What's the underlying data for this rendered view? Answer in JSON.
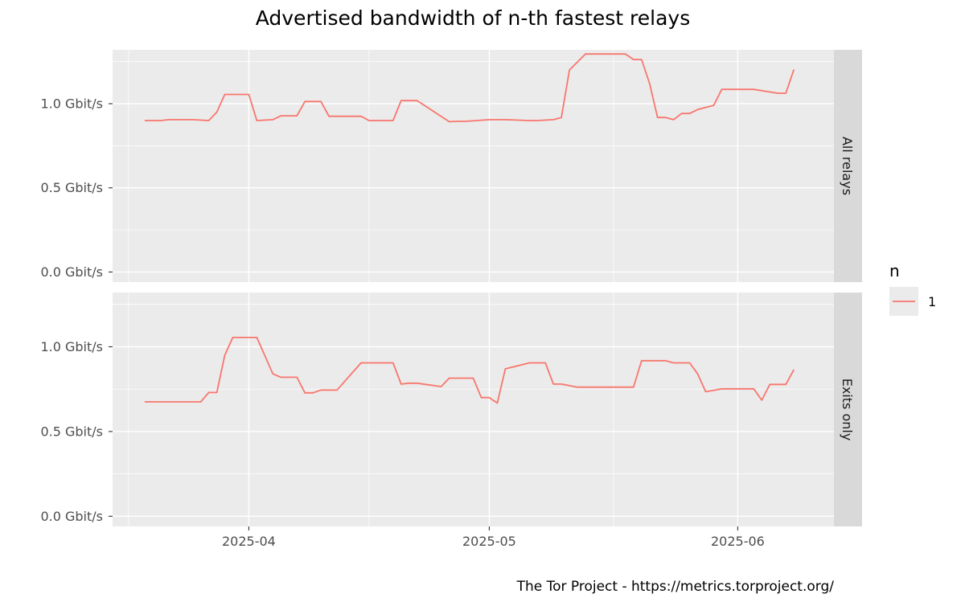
{
  "chart_data": {
    "type": "line",
    "title": "Advertised bandwidth of n-th fastest relays",
    "caption": "The Tor Project - https://metrics.torproject.org/",
    "y_ticks": [
      "1.0 Gbit/s",
      "0.5 Gbit/s",
      "0.0 Gbit/s"
    ],
    "y_tick_values": [
      1.0,
      0.5,
      0.0
    ],
    "ylim": [
      -0.06,
      1.32
    ],
    "y_unit": "Gbit/s",
    "x_ticks": [
      "2025-04",
      "2025-05",
      "2025-06"
    ],
    "x_tick_dates": [
      "2025-04-01",
      "2025-05-01",
      "2025-06-01"
    ],
    "xlim": [
      "2025-03-15",
      "2025-06-13"
    ],
    "grid": true,
    "legend": {
      "title": "n",
      "entries": [
        "1"
      ],
      "placement": "right"
    },
    "colors": {
      "series": "#f8766d",
      "panel": "#ebebeb",
      "strip": "#d9d9d9",
      "grid": "#ffffff"
    },
    "panels": [
      {
        "label": "All relays",
        "series": [
          {
            "name": "1",
            "x": [
              "2025-03-19",
              "2025-03-21",
              "2025-03-22",
              "2025-03-23",
              "2025-03-25",
              "2025-03-27",
              "2025-03-28",
              "2025-03-29",
              "2025-03-30",
              "2025-03-31",
              "2025-04-01",
              "2025-04-02",
              "2025-04-04",
              "2025-04-05",
              "2025-04-07",
              "2025-04-08",
              "2025-04-10",
              "2025-04-11",
              "2025-04-12",
              "2025-04-15",
              "2025-04-16",
              "2025-04-19",
              "2025-04-20",
              "2025-04-21",
              "2025-04-22",
              "2025-04-26",
              "2025-04-27",
              "2025-04-28",
              "2025-05-01",
              "2025-05-02",
              "2025-05-03",
              "2025-05-06",
              "2025-05-07",
              "2025-05-09",
              "2025-05-10",
              "2025-05-11",
              "2025-05-13",
              "2025-05-14",
              "2025-05-15",
              "2025-05-18",
              "2025-05-19",
              "2025-05-20",
              "2025-05-21",
              "2025-05-22",
              "2025-05-23",
              "2025-05-24",
              "2025-05-25",
              "2025-05-26",
              "2025-05-27",
              "2025-05-29",
              "2025-05-30",
              "2025-06-02",
              "2025-06-03",
              "2025-06-06",
              "2025-06-07",
              "2025-06-08"
            ],
            "values": [
              0.9,
              0.9,
              0.905,
              0.905,
              0.905,
              0.9,
              0.95,
              1.055,
              1.055,
              1.055,
              1.055,
              0.9,
              0.905,
              0.928,
              0.928,
              1.013,
              1.013,
              0.925,
              0.925,
              0.925,
              0.9,
              0.9,
              1.018,
              1.018,
              1.018,
              0.893,
              0.895,
              0.895,
              0.905,
              0.905,
              0.905,
              0.9,
              0.9,
              0.905,
              0.918,
              1.2,
              1.295,
              1.295,
              1.295,
              1.295,
              1.262,
              1.262,
              1.12,
              0.918,
              0.918,
              0.905,
              0.942,
              0.942,
              0.965,
              0.99,
              1.085,
              1.085,
              1.085,
              1.062,
              1.062,
              1.203
            ]
          }
        ]
      },
      {
        "label": "Exits only",
        "series": [
          {
            "name": "1",
            "x": [
              "2025-03-19",
              "2025-03-22",
              "2025-03-23",
              "2025-03-26",
              "2025-03-27",
              "2025-03-28",
              "2025-03-29",
              "2025-03-30",
              "2025-03-31",
              "2025-04-01",
              "2025-04-02",
              "2025-04-04",
              "2025-04-05",
              "2025-04-07",
              "2025-04-08",
              "2025-04-09",
              "2025-04-10",
              "2025-04-11",
              "2025-04-12",
              "2025-04-15",
              "2025-04-16",
              "2025-04-19",
              "2025-04-20",
              "2025-04-21",
              "2025-04-22",
              "2025-04-25",
              "2025-04-26",
              "2025-04-27",
              "2025-04-29",
              "2025-04-30",
              "2025-05-01",
              "2025-05-02",
              "2025-05-03",
              "2025-05-06",
              "2025-05-07",
              "2025-05-08",
              "2025-05-09",
              "2025-05-10",
              "2025-05-12",
              "2025-05-13",
              "2025-05-14",
              "2025-05-15",
              "2025-05-16",
              "2025-05-17",
              "2025-05-18",
              "2025-05-19",
              "2025-05-20",
              "2025-05-21",
              "2025-05-22",
              "2025-05-23",
              "2025-05-24",
              "2025-05-25",
              "2025-05-26",
              "2025-05-27",
              "2025-05-28",
              "2025-05-30",
              "2025-06-02",
              "2025-06-03",
              "2025-06-04",
              "2025-06-05",
              "2025-06-06",
              "2025-06-07",
              "2025-06-08"
            ],
            "values": [
              0.675,
              0.675,
              0.675,
              0.675,
              0.73,
              0.73,
              0.95,
              1.055,
              1.055,
              1.055,
              1.055,
              0.84,
              0.82,
              0.82,
              0.728,
              0.728,
              0.745,
              0.745,
              0.745,
              0.905,
              0.905,
              0.905,
              0.78,
              0.785,
              0.785,
              0.765,
              0.815,
              0.815,
              0.815,
              0.7,
              0.7,
              0.668,
              0.87,
              0.905,
              0.905,
              0.905,
              0.78,
              0.78,
              0.762,
              0.762,
              0.762,
              0.762,
              0.762,
              0.762,
              0.762,
              0.762,
              0.918,
              0.918,
              0.918,
              0.918,
              0.905,
              0.905,
              0.905,
              0.84,
              0.735,
              0.752,
              0.752,
              0.752,
              0.685,
              0.778,
              0.778,
              0.778,
              0.865
            ]
          }
        ]
      }
    ]
  }
}
